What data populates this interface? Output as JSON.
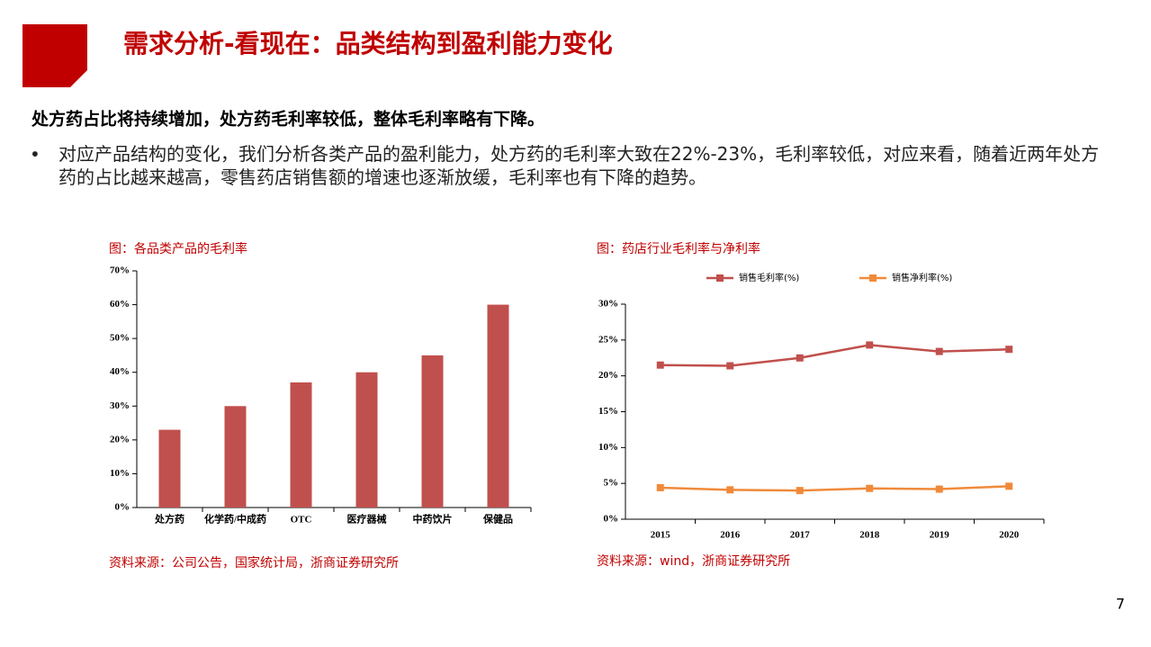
{
  "title": "需求分析-看现在：品类结构到盈利能力变化",
  "headline": "处方药占比将持续增加，处方药毛利率较低，整体毛利率略有下降。",
  "bullet": "对应产品结构的变化，我们分析各类产品的盈利能力，处方药的毛利率大致在22%-23%，毛利率较低，对应来看，随着近两年处方药的占比越来越高，零售药店销售额的增速也逐渐放缓，毛利率也有下降的趋势。",
  "page_number": "7",
  "chart_data": [
    {
      "type": "bar",
      "title": "图：各品类产品的毛利率",
      "categories": [
        "处方药",
        "化学药/中成药",
        "OTC",
        "医疗器械",
        "中药饮片",
        "保健品"
      ],
      "values": [
        23,
        30,
        37,
        40,
        45,
        60
      ],
      "color": "#c0504d",
      "ylim": [
        0,
        70
      ],
      "yticks": [
        {
          "value": 0,
          "label": "0%"
        },
        {
          "value": 10,
          "label": "10%"
        },
        {
          "value": 20,
          "label": "20%"
        },
        {
          "value": 30,
          "label": "30%"
        },
        {
          "value": 40,
          "label": "40%"
        },
        {
          "value": 50,
          "label": "50%"
        },
        {
          "value": 60,
          "label": "60%"
        },
        {
          "value": 70,
          "label": "70%"
        }
      ],
      "source": "资料来源：公司公告，国家统计局，浙商证券研究所"
    },
    {
      "type": "line",
      "title": "图：药店行业毛利率与净利率",
      "categories": [
        "2015",
        "2016",
        "2017",
        "2018",
        "2019",
        "2020"
      ],
      "series": [
        {
          "name": "销售毛利率(%)",
          "color": "#c0504d",
          "values": [
            21.5,
            21.4,
            22.5,
            24.3,
            23.4,
            23.7
          ]
        },
        {
          "name": "销售净利率(%)",
          "color": "#f08a3a",
          "values": [
            4.4,
            4.1,
            4.0,
            4.3,
            4.2,
            4.6
          ]
        }
      ],
      "ylim": [
        0,
        30
      ],
      "yticks": [
        {
          "value": 0,
          "label": "0%"
        },
        {
          "value": 5,
          "label": "5%"
        },
        {
          "value": 10,
          "label": "10%"
        },
        {
          "value": 15,
          "label": "15%"
        },
        {
          "value": 20,
          "label": "20%"
        },
        {
          "value": 25,
          "label": "25%"
        },
        {
          "value": 30,
          "label": "30%"
        }
      ],
      "source": "资料来源：wind，浙商证券研究所"
    }
  ]
}
